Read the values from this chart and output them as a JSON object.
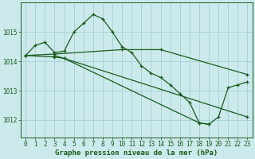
{
  "background_color": "#cce9ec",
  "grid_color": "#aad4d8",
  "line_color": "#1a5c1a",
  "title": "Graphe pression niveau de la mer (hPa)",
  "title_fontsize": 6.5,
  "tick_fontsize": 5.5,
  "xlim": [
    -0.5,
    23.5
  ],
  "ylim": [
    1011.4,
    1016.0
  ],
  "yticks": [
    1012,
    1013,
    1014,
    1015
  ],
  "xticks": [
    0,
    1,
    2,
    3,
    4,
    5,
    6,
    7,
    8,
    9,
    10,
    11,
    12,
    13,
    14,
    15,
    16,
    17,
    18,
    19,
    20,
    21,
    22,
    23
  ],
  "series": [
    {
      "x": [
        0,
        1,
        2,
        3,
        4,
        5,
        6,
        7,
        8,
        9,
        10,
        11,
        12,
        13,
        14,
        15,
        16,
        17,
        18,
        19,
        20,
        21,
        22,
        23
      ],
      "y": [
        1014.2,
        1014.55,
        1014.65,
        1014.3,
        1014.35,
        1015.0,
        1015.3,
        1015.6,
        1015.45,
        1015.0,
        1014.5,
        1014.3,
        1013.85,
        1013.6,
        1013.45,
        1013.2,
        1012.9,
        1012.6,
        1011.9,
        1011.85,
        1012.1,
        1013.1,
        1013.2,
        1013.3
      ]
    },
    {
      "x": [
        0,
        3,
        10,
        14,
        23
      ],
      "y": [
        1014.2,
        1014.25,
        1014.4,
        1014.4,
        1013.55
      ]
    },
    {
      "x": [
        0,
        3,
        4,
        23
      ],
      "y": [
        1014.2,
        1014.15,
        1014.1,
        1012.1
      ]
    },
    {
      "x": [
        3,
        4,
        18,
        19
      ],
      "y": [
        1014.2,
        1014.1,
        1011.9,
        1011.85
      ]
    }
  ]
}
